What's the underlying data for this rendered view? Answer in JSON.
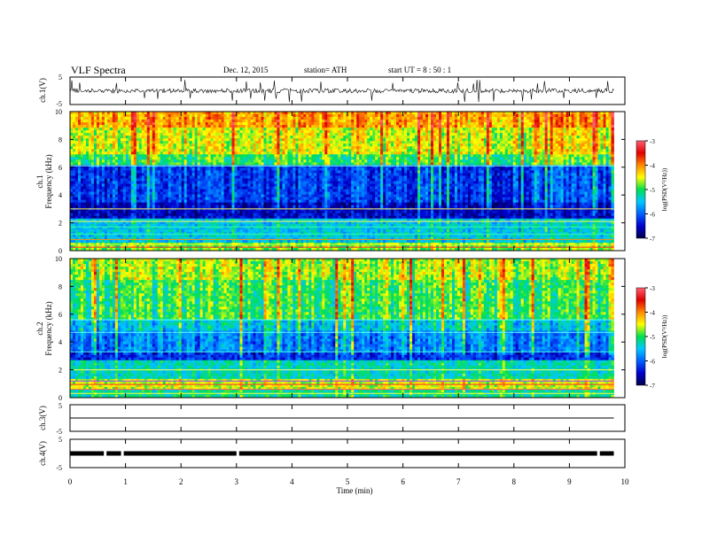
{
  "header": {
    "title": "VLF  Spectra",
    "date": "Dec. 12, 2015",
    "station": "station= ATH",
    "start": "start  UT  =    8  : 50 : 1"
  },
  "colorbar": {
    "label": "log(PSD(V²/Hz))",
    "ticks": [
      "-3",
      "-4",
      "-5",
      "-6",
      "-7"
    ],
    "stops": [
      "#ff6070",
      "#e00000",
      "#ff8800",
      "#ffff00",
      "#00e050",
      "#00c8ff",
      "#0060ff",
      "#0000cc",
      "#00004a"
    ]
  },
  "chart_data": {
    "type": "heatmap",
    "xlabel": "Time  (min)",
    "xlim": [
      0,
      10
    ],
    "xticks": [
      "0",
      "1",
      "2",
      "3",
      "4",
      "5",
      "6",
      "7",
      "8",
      "9",
      "10"
    ],
    "data_end_min": 9.8,
    "panels": [
      {
        "kind": "waveform",
        "ylabel": "ch.1(V)",
        "ylim": [
          -5,
          5
        ],
        "yticks": [
          "5",
          "-5"
        ]
      },
      {
        "kind": "spectrogram",
        "ylabel_top": "ch.1",
        "ylabel": "Frequency  (kHz)",
        "ylim": [
          0,
          10
        ],
        "yticks": [
          "10",
          "8",
          "6",
          "4",
          "2",
          "0"
        ],
        "clim": [
          -7,
          -3
        ]
      },
      {
        "kind": "spectrogram",
        "ylabel_top": "ch.2",
        "ylabel": "Frequency  (kHz)",
        "ylim": [
          0,
          10
        ],
        "yticks": [
          "10",
          "8",
          "6",
          "4",
          "2",
          "0"
        ],
        "clim": [
          -7,
          -3
        ]
      },
      {
        "kind": "waveform",
        "ylabel": "ch.3(V)",
        "ylim": [
          -5,
          5
        ],
        "yticks": [
          "5",
          "-5"
        ]
      },
      {
        "kind": "waveform",
        "ylabel": "ch.4(V)",
        "ylim": [
          -5,
          5
        ],
        "yticks": [
          "5",
          "-5"
        ]
      }
    ]
  }
}
